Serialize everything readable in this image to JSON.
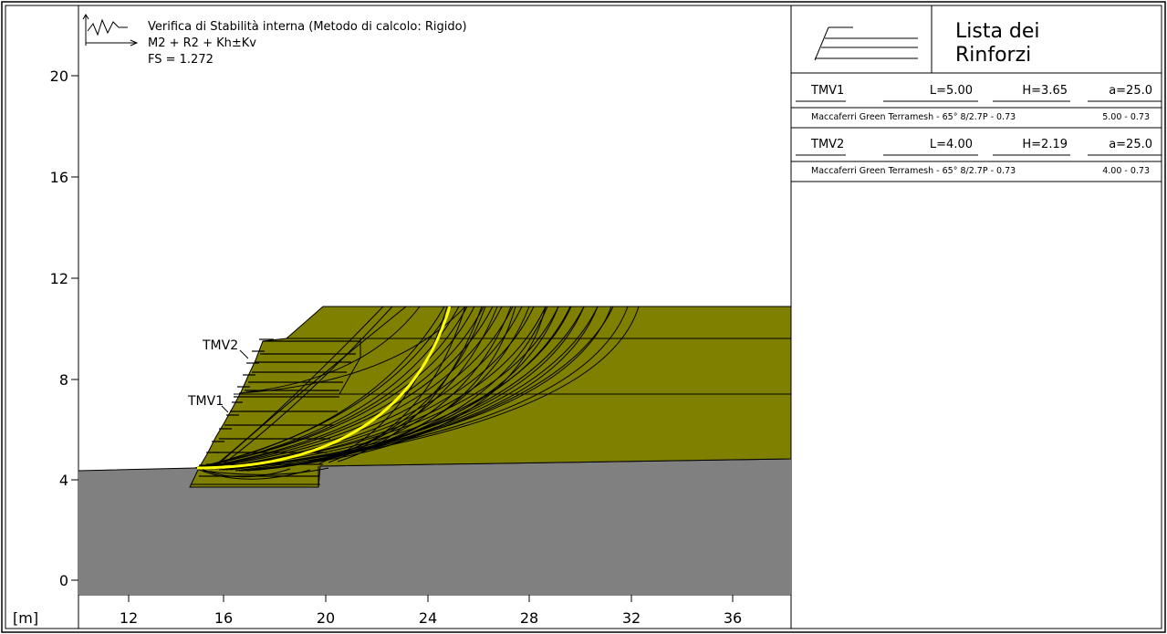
{
  "header": {
    "title": "Verifica di Stabilità interna (Metodo di calcolo: Rigido)",
    "combination": "M2 + R2 + Kh±Kv",
    "factor_of_safety": "FS = 1.272"
  },
  "axes": {
    "unit_label": "[m]",
    "x_ticks": [
      "12",
      "16",
      "20",
      "24",
      "28",
      "32",
      "36"
    ],
    "y_ticks": [
      "0",
      "4",
      "8",
      "12",
      "16",
      "20"
    ]
  },
  "reinforcement_labels": {
    "tmv1": "TMV1",
    "tmv2": "TMV2"
  },
  "legend": {
    "title_line1": "Lista dei",
    "title_line2": "Rinforzi",
    "items": [
      {
        "name": "TMV1",
        "length": "L=5.00",
        "height": "H=3.65",
        "angle": "a=25.0",
        "product": "Maccaferri Green Terramesh - 65° 8/2.7P - 0.73",
        "dims": "5.00 - 0.73"
      },
      {
        "name": "TMV2",
        "length": "L=4.00",
        "height": "H=2.19",
        "angle": "a=25.0",
        "product": "Maccaferri Green Terramesh - 65° 8/2.7P - 0.73",
        "dims": "4.00 - 0.73"
      }
    ]
  },
  "colors": {
    "soil_fill": "#7f7f00",
    "foundation_fill": "#808080",
    "critical_surface": "#ffff00",
    "trial_surfaces": "#000000"
  }
}
